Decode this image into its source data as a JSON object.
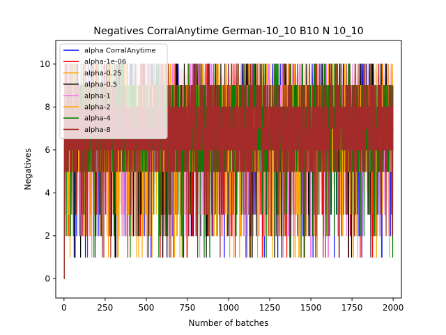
{
  "chart_data": {
    "type": "line",
    "title": "Negatives CorralAnytime German-10_10 B10 N 10_10",
    "xlabel": "Number of batches",
    "ylabel": "Negatives",
    "xlim": [
      -50,
      2050
    ],
    "ylim": [
      -0.9,
      11.1
    ],
    "xticks": [
      0,
      250,
      500,
      750,
      1000,
      1250,
      1500,
      1750,
      2000
    ],
    "yticks": [
      0,
      2,
      4,
      6,
      8,
      10
    ],
    "legend_position": "upper-left",
    "grid": false,
    "n_points": 2000,
    "value_range": [
      0,
      10
    ],
    "typical_band": [
      5,
      9
    ],
    "series": [
      {
        "name": "alpha CorralAnytime",
        "color": "#0000ff",
        "style": "line"
      },
      {
        "name": "alpha-1e-06",
        "color": "#ff0000",
        "style": "line"
      },
      {
        "name": "alpha-0.25",
        "color": "#ffa500",
        "style": "line"
      },
      {
        "name": "alpha-0.5",
        "color": "#000000",
        "style": "line"
      },
      {
        "name": "alpha-1",
        "color": "#ee82ee",
        "style": "line"
      },
      {
        "name": "alpha-2",
        "color": "#ffa500",
        "style": "line"
      },
      {
        "name": "alpha-4",
        "color": "#008000",
        "style": "line"
      },
      {
        "name": "alpha-8",
        "color": "#a52a2a",
        "style": "line"
      }
    ],
    "shaded_band_color": "#ffc0c0"
  }
}
